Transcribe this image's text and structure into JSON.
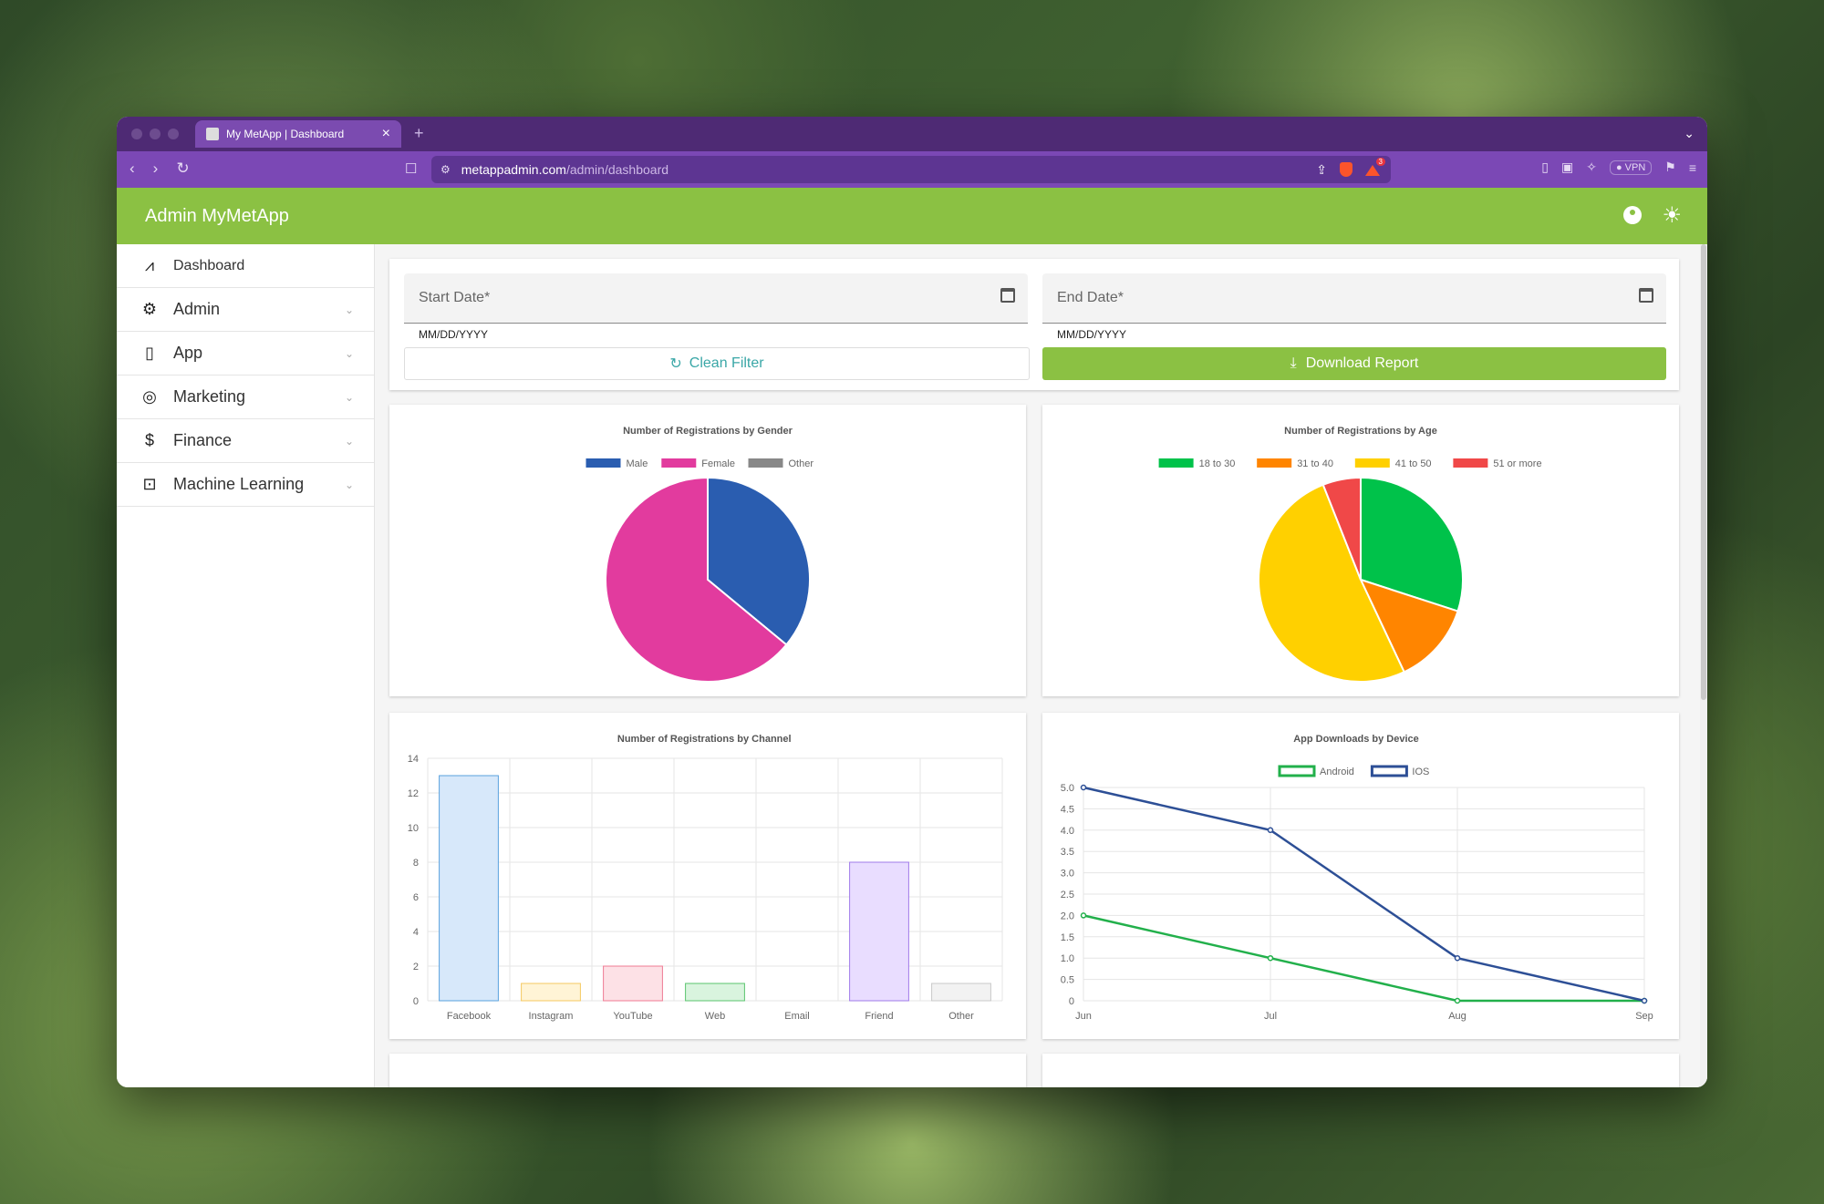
{
  "browser": {
    "tab_title": "My MetApp | Dashboard",
    "url_host": "metappadmin.com",
    "url_path": "/admin/dashboard",
    "vpn_label": "VPN",
    "notification_count": "3"
  },
  "app": {
    "title": "Admin MyMetApp",
    "accent_color": "#8bc143"
  },
  "sidebar": {
    "items": [
      {
        "label": "Dashboard",
        "icon": "dashboard-chart-icon"
      },
      {
        "label": "Admin",
        "icon": "admin-users-icon"
      },
      {
        "label": "App",
        "icon": "phone-icon"
      },
      {
        "label": "Marketing",
        "icon": "marketing-icon"
      },
      {
        "label": "Finance",
        "icon": "dollar-icon"
      },
      {
        "label": "Machine Learning",
        "icon": "robot-icon"
      }
    ]
  },
  "filters": {
    "start_label": "Start Date*",
    "end_label": "End Date*",
    "start_helper": "MM/DD/YYYY",
    "end_helper": "MM/DD/YYYY",
    "clean_label": "Clean Filter",
    "download_label": "Download Report"
  },
  "chart_data": [
    {
      "type": "pie",
      "title": "Number of Registrations by Gender",
      "labels": [
        "Male",
        "Female",
        "Other"
      ],
      "values": [
        36,
        64,
        0
      ],
      "colors": [
        "#2a5db0",
        "#e23b9e",
        "#888888"
      ],
      "legend": "top"
    },
    {
      "type": "pie",
      "title": "Number of Registrations by Age",
      "labels": [
        "18 to 30",
        "31 to 40",
        "41 to 50",
        "51 or more"
      ],
      "values": [
        30,
        13,
        51,
        6
      ],
      "colors": [
        "#00c24a",
        "#ff8500",
        "#ffd000",
        "#f04848"
      ],
      "legend": "top"
    },
    {
      "type": "bar",
      "title": "Number of Registrations by Channel",
      "categories": [
        "Facebook",
        "Instagram",
        "YouTube",
        "Web",
        "Email",
        "Friend",
        "Other"
      ],
      "values": [
        13,
        1,
        2,
        1,
        0,
        8,
        1
      ],
      "fill_colors": [
        "#d7e8fa",
        "#fff4d6",
        "#fde1e6",
        "#d9f4de",
        "#e6e6e6",
        "#e9ddff",
        "#f2f2f2"
      ],
      "stroke_colors": [
        "#5aa2de",
        "#f4c860",
        "#ef7b93",
        "#5ac46e",
        "#bbbbbb",
        "#a07bea",
        "#c8c8c8"
      ],
      "ylim": [
        0,
        14
      ],
      "yticks": [
        0,
        2,
        4,
        6,
        8,
        10,
        12,
        14
      ],
      "grid": true
    },
    {
      "type": "line",
      "title": "App Downloads by Device",
      "x": [
        "Jun",
        "Jul",
        "Aug",
        "Sep"
      ],
      "series": [
        {
          "name": "Android",
          "values": [
            2,
            1,
            0,
            0
          ],
          "color": "#22b04b"
        },
        {
          "name": "IOS",
          "values": [
            5,
            4,
            1,
            0
          ],
          "color": "#2d4f96"
        }
      ],
      "ylim": [
        0,
        5
      ],
      "yticks": [
        "0",
        "0.5",
        "1.0",
        "1.5",
        "2.0",
        "2.5",
        "3.0",
        "3.5",
        "4.0",
        "4.5",
        "5.0"
      ],
      "grid": true,
      "legend": "top"
    }
  ]
}
